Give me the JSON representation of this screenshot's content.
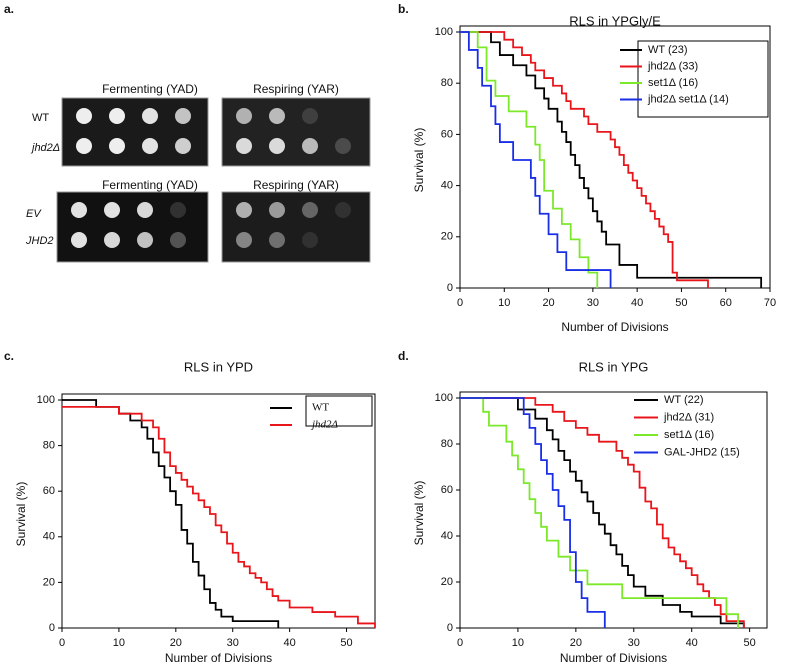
{
  "panel_a": {
    "panel": "a.",
    "blocks": [
      {
        "conditions": [
          "Fermenting (YAD)",
          "Respiring (YAR)"
        ],
        "strains": [
          "WT",
          "jhd2Δ"
        ]
      },
      {
        "conditions": [
          "Fermenting (YAD)",
          "Respiring (YAR)"
        ],
        "strains": [
          "EV",
          "JHD2"
        ]
      }
    ]
  },
  "chart_data": [
    {
      "panel": "b.",
      "type": "line",
      "step": true,
      "title": "RLS in YPGly/E",
      "x_label": "Number of Divisions",
      "y_label": "Survival (%)",
      "xlim": [
        0,
        70
      ],
      "xticks": [
        0,
        10,
        20,
        30,
        40,
        50,
        60,
        70
      ],
      "ylim": [
        0,
        100
      ],
      "yticks": [
        0,
        20,
        40,
        60,
        80,
        100
      ],
      "legend": "upper right",
      "legend_frame": true,
      "series": [
        {
          "name": "WT (23)",
          "color": "#000000",
          "x": [
            0,
            7,
            9,
            12,
            15,
            17,
            19,
            20,
            22,
            23,
            24,
            25,
            26,
            27,
            28,
            29,
            30,
            31,
            32,
            33,
            36,
            40,
            68
          ],
          "values": [
            100,
            96,
            91,
            87,
            83,
            78,
            74,
            70,
            65,
            61,
            57,
            52,
            48,
            43,
            39,
            35,
            30,
            26,
            22,
            17,
            9,
            4,
            0
          ]
        },
        {
          "name": "jhd2Δ (33)",
          "color": "#e8161b",
          "x": [
            0,
            10,
            12,
            14,
            16,
            17,
            19,
            21,
            23,
            24,
            25,
            28,
            29,
            31,
            34,
            35,
            36,
            37,
            38,
            39,
            40,
            41,
            42,
            43,
            44,
            45,
            46,
            47,
            48,
            49,
            56
          ],
          "values": [
            100,
            97,
            94,
            91,
            88,
            85,
            82,
            79,
            76,
            73,
            70,
            67,
            64,
            61,
            58,
            55,
            52,
            48,
            45,
            42,
            39,
            36,
            33,
            30,
            27,
            24,
            21,
            18,
            6,
            3,
            0
          ]
        },
        {
          "name": "set1Δ (16)",
          "color": "#7ce82a",
          "x": [
            0,
            4,
            6,
            8,
            11,
            15,
            17,
            18,
            19,
            21,
            23,
            25,
            27,
            29,
            31
          ],
          "values": [
            100,
            94,
            81,
            75,
            69,
            63,
            56,
            50,
            38,
            31,
            25,
            19,
            12,
            6,
            0
          ]
        },
        {
          "name": "jhd2Δ set1Δ (14)",
          "color": "#1a2ee6",
          "x": [
            0,
            2,
            4,
            5,
            7,
            8,
            9,
            12,
            16,
            17,
            18,
            20,
            22,
            24,
            34
          ],
          "values": [
            100,
            93,
            86,
            79,
            71,
            64,
            57,
            50,
            43,
            36,
            29,
            21,
            14,
            7,
            0
          ]
        }
      ]
    },
    {
      "panel": "c.",
      "type": "line",
      "step": true,
      "title": "RLS in YPD",
      "x_label": "Number of Divisions",
      "y_label": "Survival (%)",
      "xlim": [
        0,
        55
      ],
      "xticks": [
        0,
        10,
        20,
        30,
        40,
        50
      ],
      "ylim": [
        0,
        100
      ],
      "yticks": [
        0,
        20,
        40,
        60,
        80,
        100
      ],
      "legend": "upper right",
      "legend_frame": true,
      "series": [
        {
          "name": "WT",
          "color": "#000000",
          "x": [
            0,
            6,
            10,
            12,
            14,
            15,
            16,
            17,
            18,
            19,
            20,
            21,
            22,
            23,
            24,
            25,
            26,
            27,
            28,
            30,
            38
          ],
          "values": [
            100,
            97,
            94,
            91,
            88,
            83,
            77,
            71,
            66,
            60,
            54,
            43,
            37,
            29,
            23,
            17,
            11,
            8,
            5,
            3,
            0
          ]
        },
        {
          "name": "jhd2Δ",
          "color": "#e8161b",
          "x": [
            0,
            10,
            14,
            16,
            17,
            18,
            19,
            20,
            21,
            22,
            23,
            24,
            25,
            26,
            27,
            28,
            29,
            30,
            31,
            32,
            33,
            34,
            35,
            36,
            37,
            38,
            40,
            44,
            48,
            52,
            55
          ],
          "values": [
            97,
            94,
            91,
            88,
            83,
            77,
            71,
            68,
            65,
            62,
            59,
            56,
            53,
            50,
            45,
            42,
            37,
            33,
            29,
            27,
            24,
            22,
            20,
            17,
            14,
            12,
            9,
            7,
            5,
            2,
            0
          ]
        }
      ]
    },
    {
      "panel": "d.",
      "type": "line",
      "step": true,
      "title": "RLS in YPG",
      "x_label": "Number of Divisions",
      "y_label": "Survival (%)",
      "xlim": [
        0,
        53
      ],
      "xticks": [
        0,
        10,
        20,
        30,
        40,
        50
      ],
      "ylim": [
        0,
        100
      ],
      "yticks": [
        0,
        20,
        40,
        60,
        80,
        100
      ],
      "legend": "upper right",
      "legend_frame": false,
      "series": [
        {
          "name": "WT (22)",
          "color": "#000000",
          "x": [
            0,
            10,
            13,
            15,
            16,
            17,
            18,
            19,
            20,
            21,
            22,
            23,
            24,
            25,
            26,
            27,
            28,
            29,
            30,
            32,
            35,
            38,
            40,
            45,
            49
          ],
          "values": [
            100,
            95,
            91,
            86,
            82,
            77,
            73,
            68,
            64,
            59,
            55,
            50,
            45,
            41,
            36,
            32,
            27,
            23,
            18,
            14,
            10,
            7,
            5,
            2,
            0
          ]
        },
        {
          "name": "jhd2Δ (31)",
          "color": "#e8161b",
          "x": [
            0,
            13,
            16,
            18,
            20,
            22,
            24,
            27,
            28,
            29,
            30,
            31,
            32,
            33,
            34,
            35,
            36,
            37,
            38,
            39,
            40,
            41,
            42,
            43,
            44,
            45,
            46,
            49
          ],
          "values": [
            100,
            97,
            94,
            90,
            87,
            84,
            81,
            77,
            74,
            71,
            68,
            61,
            55,
            52,
            45,
            39,
            35,
            32,
            29,
            26,
            23,
            19,
            16,
            13,
            10,
            6,
            3,
            0
          ]
        },
        {
          "name": "set1Δ (16)",
          "color": "#7ce82a",
          "x": [
            0,
            4,
            5,
            8,
            9,
            10,
            11,
            12,
            13,
            14,
            15,
            17,
            19,
            22,
            28,
            46,
            48
          ],
          "values": [
            100,
            94,
            88,
            81,
            75,
            69,
            63,
            56,
            50,
            44,
            38,
            31,
            25,
            19,
            13,
            6,
            0
          ]
        },
        {
          "name": "GAL-JHD2 (15)",
          "color": "#1a2ee6",
          "x": [
            0,
            11,
            12,
            13,
            14,
            15,
            16,
            17,
            18,
            19,
            20,
            21,
            22,
            25
          ],
          "values": [
            100,
            93,
            87,
            80,
            73,
            67,
            60,
            53,
            47,
            33,
            20,
            13,
            7,
            0
          ]
        }
      ]
    }
  ]
}
